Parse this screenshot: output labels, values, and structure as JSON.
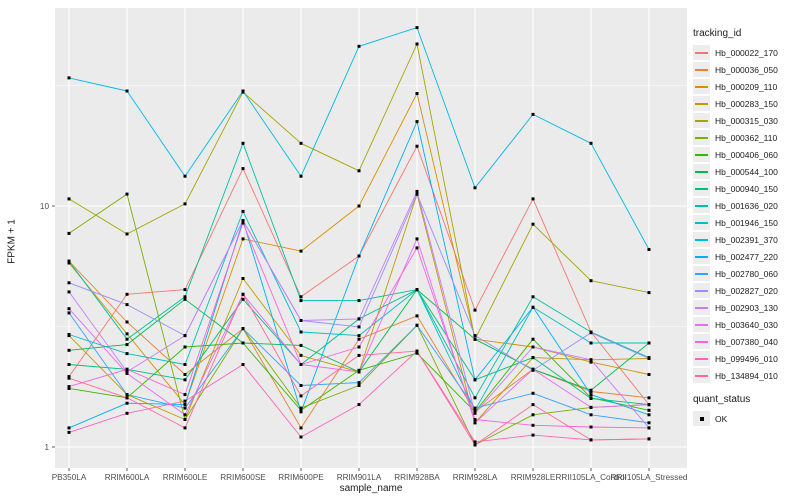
{
  "figure": {
    "background": "#FFFFFF",
    "panel_background": "#EBEBEB",
    "grid_color": "#FFFFFF",
    "point_color": "#000000",
    "axis_text_color": "#4D4D4D",
    "text_color": "#1A1A1A",
    "legend_key_background": "#EDEDED"
  },
  "axes": {
    "y_title": "FPKM + 1",
    "x_title": "sample_name",
    "y_scale": "log10",
    "y_ticks": [
      {
        "label": "1",
        "value": 1
      },
      {
        "label": "10",
        "value": 10
      }
    ],
    "y_minor": [
      3.1623,
      31.6228
    ]
  },
  "legend": {
    "color_title": "tracking_id",
    "shape_title": "quant_status",
    "ok_label": "OK"
  },
  "chart_data": {
    "type": "line",
    "title": "",
    "xlabel": "sample_name",
    "ylabel": "FPKM + 1",
    "yscale": "log10",
    "ylim": [
      0.85,
      65
    ],
    "grid": true,
    "legend_position": "right",
    "point_shape": "square",
    "point_color": "#000000",
    "x_categories": [
      "PB350LA",
      "RRIM600LA",
      "RRIM600LE",
      "RRIM600SE",
      "RRIM600PE",
      "RRIM901LA",
      "RRIM928BA",
      "RRIM928LA",
      "RRIM928LE",
      "RRII105LA_Control",
      "RRII105LA_Stressed"
    ],
    "series": [
      {
        "name": "Hb_000022_170",
        "color": "#F8766D",
        "values": [
          1.96,
          4.3,
          4.5,
          14.3,
          4.2,
          6.2,
          17.7,
          3.7,
          10.7,
          3.0,
          1.5
        ]
      },
      {
        "name": "Hb_000036_050",
        "color": "#EA8331",
        "values": [
          5.9,
          3.3,
          2.0,
          3.1,
          1.2,
          2.8,
          3.5,
          1.4,
          2.1,
          1.7,
          1.6
        ]
      },
      {
        "name": "Hb_000209_110",
        "color": "#D89000",
        "values": [
          5.8,
          2.95,
          1.5,
          7.3,
          6.5,
          10.0,
          29.3,
          2.8,
          2.6,
          2.25,
          2.0
        ]
      },
      {
        "name": "Hb_000283_150",
        "color": "#C09B00",
        "values": [
          2.9,
          1.65,
          1.3,
          5.0,
          2.4,
          2.05,
          11.2,
          1.26,
          2.35,
          2.3,
          2.33
        ]
      },
      {
        "name": "Hb_000315_030",
        "color": "#A3A500",
        "values": [
          10.7,
          7.65,
          10.2,
          29.7,
          18.2,
          14.0,
          47.0,
          2.8,
          8.4,
          4.9,
          4.37
        ]
      },
      {
        "name": "Hb_000362_110",
        "color": "#7CAE00",
        "values": [
          7.7,
          11.2,
          1.3,
          3.1,
          1.45,
          1.8,
          3.2,
          1.02,
          1.36,
          1.46,
          1.5
        ]
      },
      {
        "name": "Hb_000406_060",
        "color": "#39B600",
        "values": [
          1.75,
          1.6,
          2.6,
          2.7,
          1.42,
          2.08,
          2.45,
          1.4,
          2.8,
          1.6,
          1.42
        ]
      },
      {
        "name": "Hb_000544_100",
        "color": "#00BB4E",
        "values": [
          2.52,
          2.66,
          4.1,
          2.7,
          2.64,
          2.05,
          4.5,
          2.8,
          2.1,
          1.72,
          2.7
        ]
      },
      {
        "name": "Hb_000940_150",
        "color": "#00BF7D",
        "values": [
          2.2,
          2.1,
          1.9,
          4.1,
          2.2,
          3.4,
          4.5,
          1.9,
          2.35,
          1.59,
          1.5
        ]
      },
      {
        "name": "Hb_001636_020",
        "color": "#00C1A3",
        "values": [
          5.9,
          2.8,
          4.2,
          18.2,
          4.05,
          4.05,
          4.5,
          1.6,
          4.2,
          3.0,
          2.35
        ]
      },
      {
        "name": "Hb_001946_150",
        "color": "#00BFC4",
        "values": [
          2.93,
          2.44,
          2.2,
          9.5,
          3.0,
          2.9,
          4.5,
          1.42,
          3.8,
          2.7,
          2.7
        ]
      },
      {
        "name": "Hb_002391_370",
        "color": "#00BAE0",
        "values": [
          34,
          30,
          13.3,
          30,
          13.3,
          46,
          55,
          11.9,
          24,
          18.2,
          6.6
        ]
      },
      {
        "name": "Hb_002477_220",
        "color": "#00B0F6",
        "values": [
          1.2,
          1.52,
          1.5,
          8.7,
          1.4,
          6.2,
          22.4,
          1.9,
          3.8,
          1.65,
          1.36
        ]
      },
      {
        "name": "Hb_002780_060",
        "color": "#35A2FF",
        "values": [
          3.6,
          1.65,
          1.45,
          3.1,
          1.8,
          1.85,
          3.2,
          1.45,
          1.67,
          1.36,
          1.26
        ]
      },
      {
        "name": "Hb_002827_020",
        "color": "#9590FF",
        "values": [
          4.8,
          3.9,
          2.9,
          8.7,
          3.35,
          3.15,
          11.2,
          2.9,
          2.08,
          2.98,
          2.33
        ]
      },
      {
        "name": "Hb_002903_130",
        "color": "#C77CFF",
        "values": [
          4.4,
          2.05,
          2.9,
          8.7,
          3.35,
          3.4,
          11.5,
          1.38,
          2.6,
          2.3,
          1.2
        ]
      },
      {
        "name": "Hb_003640_030",
        "color": "#E76BF3",
        "values": [
          3.75,
          2.02,
          1.36,
          4.3,
          2.2,
          2.05,
          7.3,
          1.26,
          2.1,
          1.46,
          1.5
        ]
      },
      {
        "name": "Hb_007380_040",
        "color": "#FA62DB",
        "values": [
          1.78,
          2.1,
          1.65,
          8.5,
          2.2,
          2.6,
          6.7,
          1.3,
          1.23,
          1.21,
          1.2
        ]
      },
      {
        "name": "Hb_099496_010",
        "color": "#FF62BC",
        "values": [
          1.15,
          1.38,
          1.55,
          2.2,
          1.1,
          1.5,
          2.5,
          1.05,
          1.12,
          1.07,
          1.08
        ]
      },
      {
        "name": "Hb_134894_010",
        "color": "#FF6A98",
        "values": [
          1.93,
          1.6,
          1.2,
          4.3,
          1.63,
          2.4,
          2.5,
          1.02,
          1.5,
          1.07,
          1.08
        ]
      }
    ]
  }
}
